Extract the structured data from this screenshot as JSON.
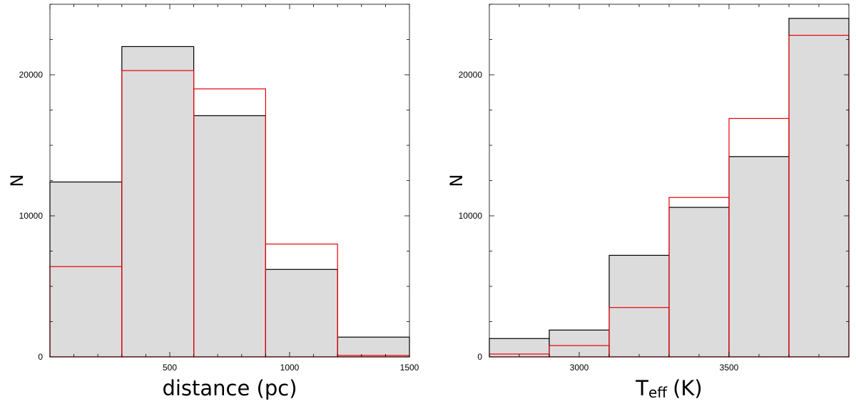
{
  "chart_data": [
    {
      "type": "bar",
      "xlabel": "distance (pc)",
      "ylabel": "N",
      "xlim": [
        0,
        1500
      ],
      "ylim": [
        0,
        25000
      ],
      "x_ticks": [
        500,
        1000,
        1500
      ],
      "y_ticks": [
        0,
        10000,
        20000
      ],
      "bin_edges": [
        0,
        300,
        600,
        900,
        1200,
        1500
      ],
      "grid": false,
      "series": [
        {
          "values": [
            12400,
            22000,
            17100,
            6200,
            1400
          ],
          "color": "#000000",
          "fill": "#dcdcdc"
        },
        {
          "values": [
            6400,
            20300,
            19000,
            8000,
            100
          ],
          "color": "#e8000b",
          "fill": "none"
        }
      ]
    },
    {
      "type": "bar",
      "xlabel_main": "T",
      "xlabel_sub": "eff",
      "xlabel_unit": "(K)",
      "ylabel": "N",
      "xlim": [
        2700,
        3900
      ],
      "ylim": [
        0,
        25000
      ],
      "x_ticks": [
        3000,
        3500
      ],
      "y_ticks": [
        0,
        10000,
        20000
      ],
      "bin_edges": [
        2700,
        2900,
        3100,
        3300,
        3500,
        3700,
        3900
      ],
      "grid": false,
      "series": [
        {
          "values": [
            1300,
            1900,
            7200,
            10600,
            14200,
            24000
          ],
          "color": "#000000",
          "fill": "#dcdcdc"
        },
        {
          "values": [
            200,
            800,
            3500,
            11300,
            16900,
            22800
          ],
          "color": "#e8000b",
          "fill": "none"
        }
      ]
    }
  ]
}
